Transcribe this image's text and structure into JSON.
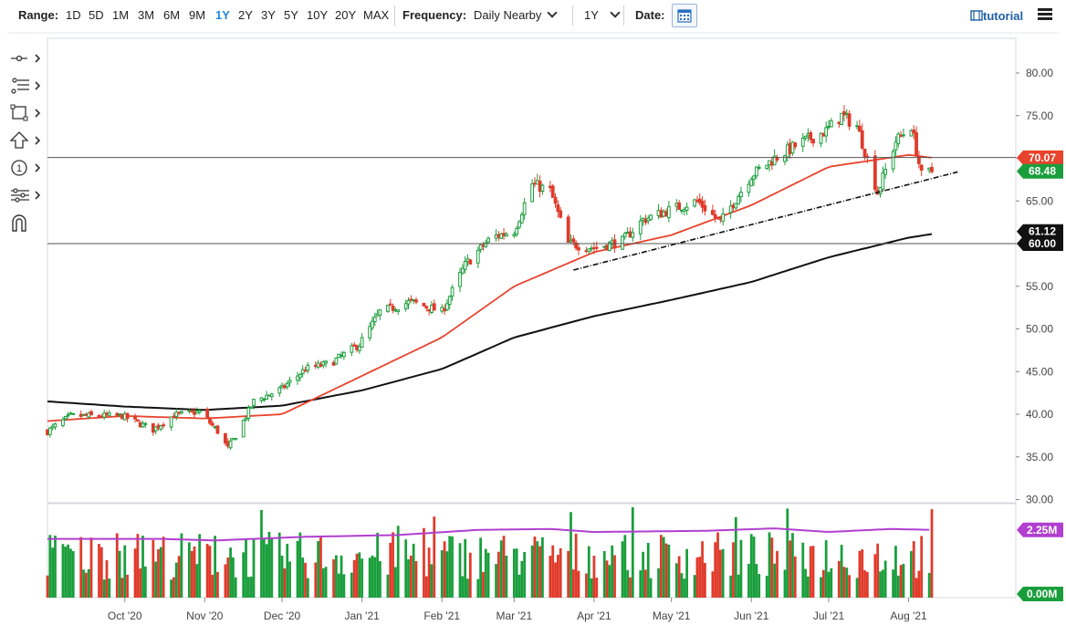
{
  "toolbar": {
    "range_label": "Range:",
    "ranges": [
      "1D",
      "5D",
      "1M",
      "3M",
      "6M",
      "9M",
      "1Y",
      "2Y",
      "3Y",
      "5Y",
      "10Y",
      "20Y",
      "MAX"
    ],
    "active_range": "1Y",
    "frequency_label": "Frequency:",
    "frequency_value": "Daily Nearby",
    "period_value": "1Y",
    "date_label": "Date:",
    "tutorial_label": "tutorial"
  },
  "sidebar": {
    "tools": [
      "crosshair-tool-icon",
      "fibonacci-tool-icon",
      "rectangle-tool-icon",
      "arrow-tool-icon",
      "counter-tool-icon",
      "measure-tool-icon",
      "magnet-tool-icon"
    ]
  },
  "colors": {
    "up": "#1a9e3c",
    "down": "#e03a2a",
    "ma50": "#e8432c",
    "ma200": "#111111",
    "volume_ma": "#b13fd0",
    "accent": "#1e88e5",
    "price_badge": "#1a9e3c",
    "ma50_badge": "#e8432c",
    "ma200_badge": "#111111"
  },
  "chart_data": {
    "type": "candlestick",
    "instrument_note": "",
    "x_ticks": [
      "Oct '20",
      "Nov '20",
      "Dec '20",
      "Jan '21",
      "Feb '21",
      "Mar '21",
      "Apr '21",
      "May '21",
      "Jun '21",
      "Jul '21",
      "Aug '21"
    ],
    "y_ticks": [
      "80.00",
      "75.00",
      "70.00",
      "65.00",
      "60.00",
      "55.00",
      "50.00",
      "45.00",
      "40.00",
      "35.00",
      "30.00"
    ],
    "ylim": [
      30,
      81
    ],
    "price_anchors": [
      {
        "date": "2020-09-01",
        "close": 38.0
      },
      {
        "date": "2020-09-10",
        "close": 39.8
      },
      {
        "date": "2020-09-20",
        "close": 39.8
      },
      {
        "date": "2020-09-30",
        "close": 39.8
      },
      {
        "date": "2020-10-12",
        "close": 38.2
      },
      {
        "date": "2020-10-20",
        "close": 39.9
      },
      {
        "date": "2020-10-30",
        "close": 40.3
      },
      {
        "date": "2020-11-06",
        "close": 38.0
      },
      {
        "date": "2020-11-10",
        "close": 36.0
      },
      {
        "date": "2020-11-13",
        "close": 37.5
      },
      {
        "date": "2020-11-20",
        "close": 41.5
      },
      {
        "date": "2020-12-01",
        "close": 43.0
      },
      {
        "date": "2020-12-10",
        "close": 45.3
      },
      {
        "date": "2020-12-20",
        "close": 46.0
      },
      {
        "date": "2020-12-31",
        "close": 48.2
      },
      {
        "date": "2021-01-08",
        "close": 52.0
      },
      {
        "date": "2021-01-20",
        "close": 53.2
      },
      {
        "date": "2021-02-01",
        "close": 52.0
      },
      {
        "date": "2021-02-10",
        "close": 57.5
      },
      {
        "date": "2021-02-20",
        "close": 60.7
      },
      {
        "date": "2021-03-01",
        "close": 61.5
      },
      {
        "date": "2021-03-08",
        "close": 67.0
      },
      {
        "date": "2021-03-15",
        "close": 66.2
      },
      {
        "date": "2021-03-22",
        "close": 60.0
      },
      {
        "date": "2021-04-01",
        "close": 59.5
      },
      {
        "date": "2021-04-12",
        "close": 60.3
      },
      {
        "date": "2021-04-20",
        "close": 62.8
      },
      {
        "date": "2021-05-01",
        "close": 64.0
      },
      {
        "date": "2021-05-11",
        "close": 65.0
      },
      {
        "date": "2021-05-20",
        "close": 62.5
      },
      {
        "date": "2021-06-01",
        "close": 68.0
      },
      {
        "date": "2021-06-10",
        "close": 70.0
      },
      {
        "date": "2021-06-20",
        "close": 71.8
      },
      {
        "date": "2021-06-30",
        "close": 73.2
      },
      {
        "date": "2021-07-06",
        "close": 75.0
      },
      {
        "date": "2021-07-12",
        "close": 73.8
      },
      {
        "date": "2021-07-20",
        "close": 66.0
      },
      {
        "date": "2021-07-27",
        "close": 72.0
      },
      {
        "date": "2021-08-02",
        "close": 73.8
      },
      {
        "date": "2021-08-06",
        "close": 68.0
      },
      {
        "date": "2021-08-10",
        "close": 68.5
      }
    ],
    "ma50_anchors": [
      {
        "date": "2020-09-01",
        "value": 39.2
      },
      {
        "date": "2020-10-01",
        "value": 39.8
      },
      {
        "date": "2020-11-01",
        "value": 39.5
      },
      {
        "date": "2020-12-01",
        "value": 40.0
      },
      {
        "date": "2021-01-01",
        "value": 44.5
      },
      {
        "date": "2021-02-01",
        "value": 49.0
      },
      {
        "date": "2021-03-01",
        "value": 55.0
      },
      {
        "date": "2021-04-01",
        "value": 59.0
      },
      {
        "date": "2021-05-01",
        "value": 61.0
      },
      {
        "date": "2021-06-01",
        "value": 64.5
      },
      {
        "date": "2021-07-01",
        "value": 69.0
      },
      {
        "date": "2021-08-01",
        "value": 70.4
      },
      {
        "date": "2021-08-10",
        "value": 70.07
      }
    ],
    "ma200_anchors": [
      {
        "date": "2020-09-01",
        "value": 41.5
      },
      {
        "date": "2020-10-01",
        "value": 40.9
      },
      {
        "date": "2020-11-01",
        "value": 40.5
      },
      {
        "date": "2020-12-01",
        "value": 41.0
      },
      {
        "date": "2021-01-01",
        "value": 42.8
      },
      {
        "date": "2021-02-01",
        "value": 45.3
      },
      {
        "date": "2021-03-01",
        "value": 49.0
      },
      {
        "date": "2021-04-01",
        "value": 51.5
      },
      {
        "date": "2021-05-01",
        "value": 53.4
      },
      {
        "date": "2021-06-01",
        "value": 55.5
      },
      {
        "date": "2021-07-01",
        "value": 58.4
      },
      {
        "date": "2021-08-01",
        "value": 60.7
      },
      {
        "date": "2021-08-10",
        "value": 61.12
      }
    ],
    "horizontal_lines": [
      70.1,
      60.0
    ],
    "trendline": {
      "start": {
        "date": "2021-03-24",
        "value": 56.9
      },
      "end": {
        "date": "2021-08-20",
        "value": 68.4
      }
    },
    "last_price_label": "68.48",
    "ma50_label": "70.07",
    "ma200_label": "61.12",
    "ma200_hidden_label": "60.00",
    "volume": {
      "y_ticks": [],
      "volume_ma_label": "2.25M",
      "volume_label": "0.00M",
      "ma_level": 2.25,
      "ymax": 3.0,
      "ma_anchors": [
        {
          "date": "2020-09-01",
          "value": 1.95
        },
        {
          "date": "2020-10-15",
          "value": 1.95
        },
        {
          "date": "2020-11-05",
          "value": 1.9
        },
        {
          "date": "2020-12-10",
          "value": 2.02
        },
        {
          "date": "2021-01-15",
          "value": 2.08
        },
        {
          "date": "2021-02-15",
          "value": 2.25
        },
        {
          "date": "2021-03-15",
          "value": 2.28
        },
        {
          "date": "2021-04-01",
          "value": 2.18
        },
        {
          "date": "2021-05-15",
          "value": 2.22
        },
        {
          "date": "2021-06-10",
          "value": 2.3
        },
        {
          "date": "2021-07-01",
          "value": 2.18
        },
        {
          "date": "2021-07-25",
          "value": 2.28
        },
        {
          "date": "2021-08-10",
          "value": 2.25
        }
      ]
    }
  }
}
